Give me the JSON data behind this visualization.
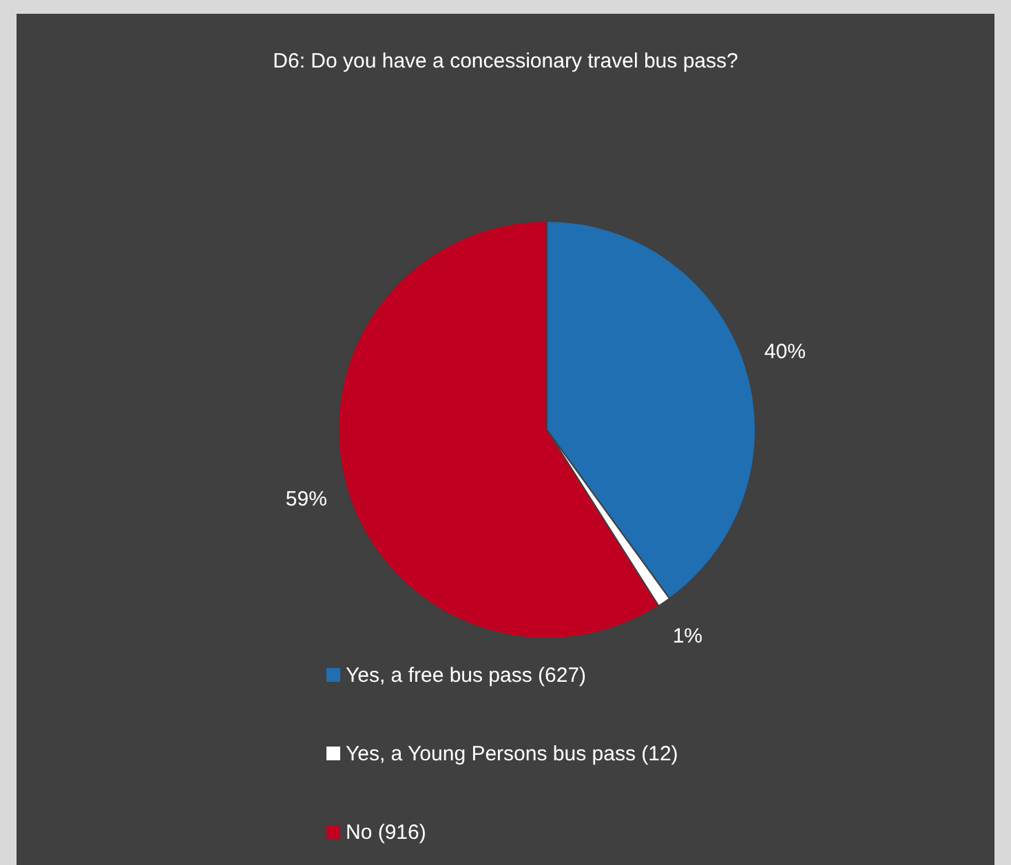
{
  "chart_data": {
    "type": "pie",
    "title": "D6: Do you have a concessionary travel bus pass?",
    "categories": [
      "Yes, a free bus pass (627)",
      "Yes, a Young Persons bus pass (12)",
      "No (916)"
    ],
    "values": [
      40,
      1,
      59
    ],
    "colors": [
      "#1f6fb2",
      "#ffffff",
      "#c00020"
    ],
    "value_labels": [
      "40%",
      "1%",
      "59%"
    ],
    "legend": "bottom"
  }
}
